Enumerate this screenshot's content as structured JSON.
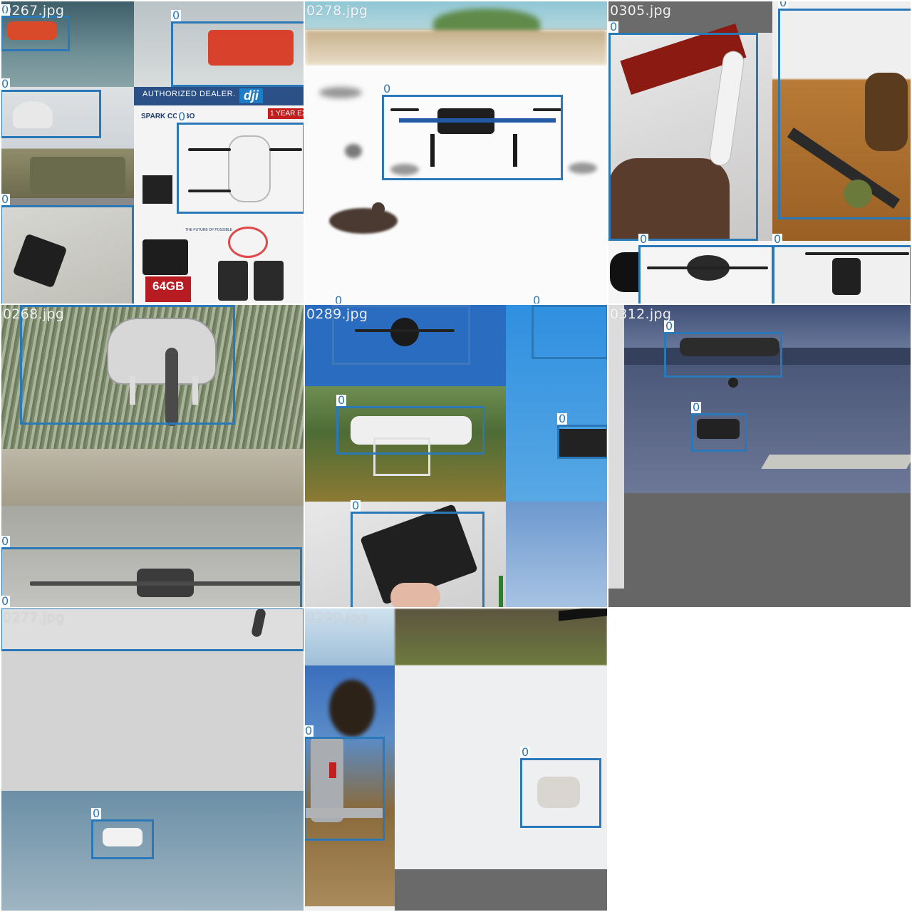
{
  "mosaic": {
    "background": "#ffffff",
    "box_color": "#2a78b8",
    "tiles": [
      {
        "filename": "0267.jpg",
        "labels": [
          "0",
          "0",
          "0",
          "0",
          "0"
        ],
        "ad_text": {
          "dealer": "AUTHORIZED DEALER.",
          "brand": "dji",
          "combo": "SPARK COMBO",
          "warranty": "1 YEAR EXT",
          "card": "64GB",
          "future": "THE FUTURE OF POSSIBLE"
        }
      },
      {
        "filename": "0278.jpg",
        "labels": [
          "0",
          "0",
          "0"
        ]
      },
      {
        "filename": "0305.jpg",
        "labels": [
          "0",
          "0",
          "0",
          "0"
        ]
      },
      {
        "filename": "0268.jpg",
        "labels": [
          "0",
          "0",
          "0"
        ]
      },
      {
        "filename": "0289.jpg",
        "labels": [
          "0",
          "0",
          "0",
          "0"
        ]
      },
      {
        "filename": "0312.jpg",
        "labels": [
          "0",
          "0"
        ]
      },
      {
        "filename": "0277.jpg",
        "labels": [
          "0"
        ]
      },
      {
        "filename": "0290.jpg",
        "labels": [
          "0",
          "0"
        ]
      }
    ]
  }
}
